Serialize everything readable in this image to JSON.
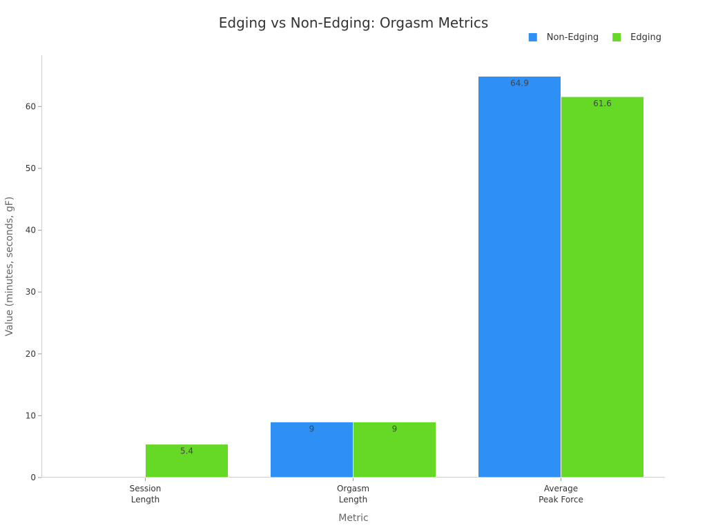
{
  "chart_data": {
    "type": "bar",
    "title": "Edging vs Non-Edging: Orgasm Metrics",
    "xlabel": "Metric",
    "ylabel": "Value (minutes, seconds, gF)",
    "categories": [
      [
        "Session",
        "Length"
      ],
      [
        "Orgasm",
        "Length"
      ],
      [
        "Average",
        "Peak Force"
      ]
    ],
    "series": [
      {
        "name": "Non-Edging",
        "color": "#2e8ff5",
        "values": [
          null,
          9,
          64.9
        ],
        "labels": [
          "",
          "9",
          "64.9"
        ]
      },
      {
        "name": "Edging",
        "color": "#66d926",
        "values": [
          5.4,
          9,
          61.6
        ],
        "labels": [
          "5.4",
          "9",
          "61.6"
        ]
      }
    ],
    "ylim": [
      0,
      68.3
    ],
    "yticks": [
      0,
      10,
      20,
      30,
      40,
      50,
      60
    ],
    "grid": false,
    "legend_position": "top-right"
  }
}
